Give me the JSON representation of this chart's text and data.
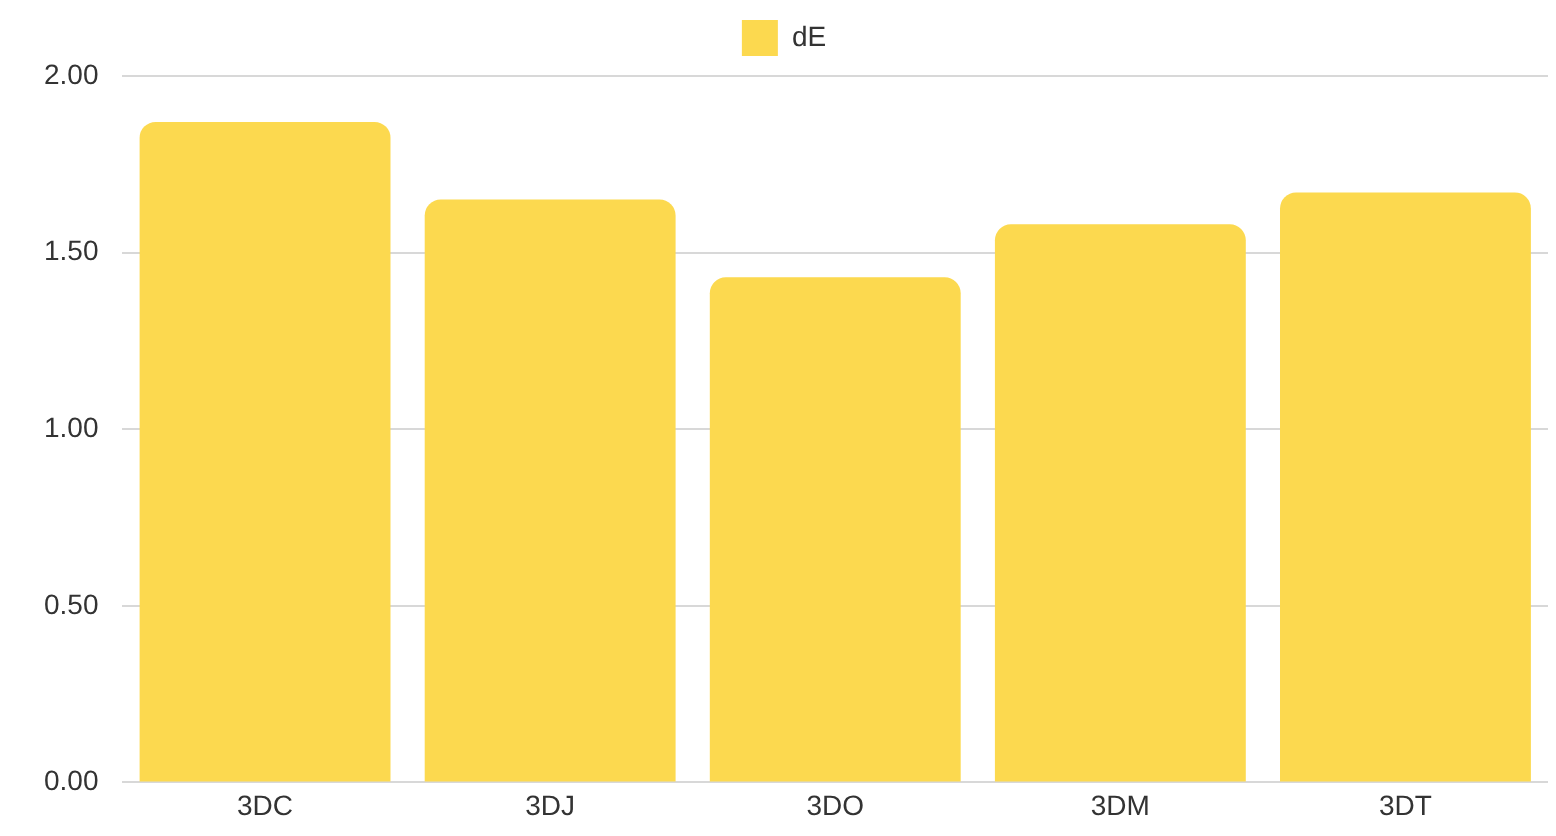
{
  "chart_data": {
    "type": "bar",
    "categories": [
      "3DC",
      "3DJ",
      "3DO",
      "3DM",
      "3DT"
    ],
    "series": [
      {
        "name": "dE",
        "color": "#fcd94f",
        "values": [
          1.87,
          1.65,
          1.43,
          1.58,
          1.67
        ]
      }
    ],
    "ylim": [
      0,
      2
    ],
    "yticks": [
      {
        "value": 0,
        "label": "0.00"
      },
      {
        "value": 0.5,
        "label": "0.50"
      },
      {
        "value": 1,
        "label": "1.00"
      },
      {
        "value": 1.5,
        "label": "1.50"
      },
      {
        "value": 2,
        "label": "2.00"
      }
    ],
    "grid": "y",
    "legend": "top"
  }
}
